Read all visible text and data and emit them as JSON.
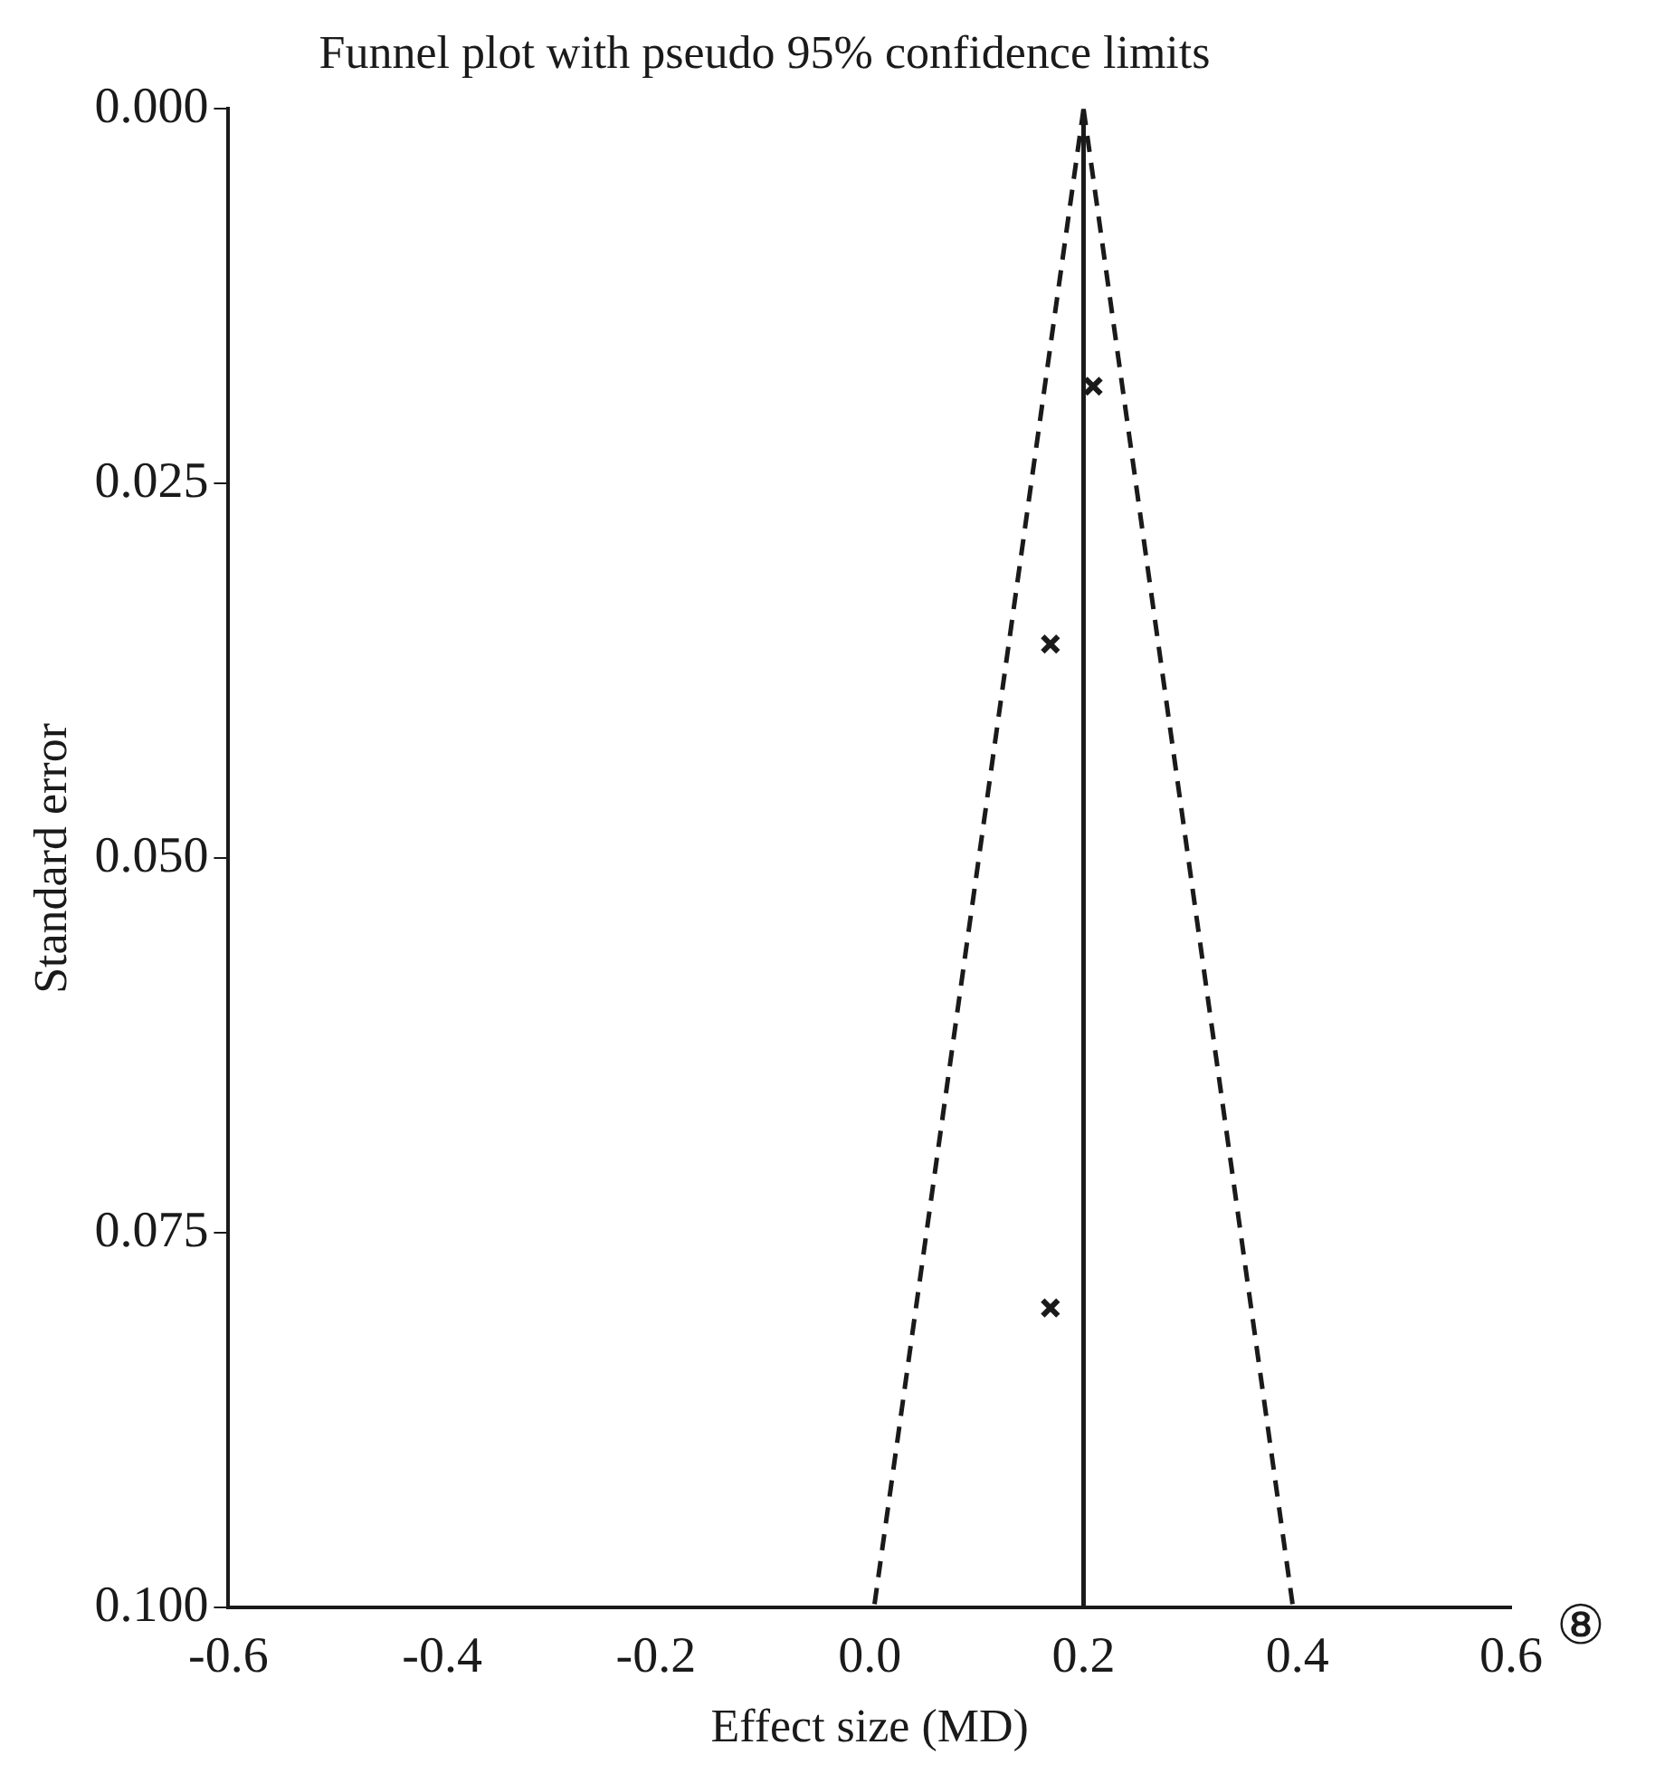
{
  "chart_data": {
    "type": "scatter",
    "title": "Funnel plot with pseudo 95% confidence limits",
    "xlabel": "Effect size (MD)",
    "ylabel": "Standard error",
    "xlim": [
      -0.6,
      0.6
    ],
    "xticks": [
      {
        "value": -0.6,
        "label": "-0.6"
      },
      {
        "value": -0.4,
        "label": "-0.4"
      },
      {
        "value": -0.2,
        "label": "-0.2"
      },
      {
        "value": 0,
        "label": "0.0"
      },
      {
        "value": 0.2,
        "label": "0.2"
      },
      {
        "value": 0.4,
        "label": "0.4"
      },
      {
        "value": 0.6,
        "label": "0.6"
      }
    ],
    "ylim": [
      0.1,
      0
    ],
    "yticks": [
      {
        "value": 0,
        "label": "0.000"
      },
      {
        "value": 0.025,
        "label": "0.025"
      },
      {
        "value": 0.05,
        "label": "0.050"
      },
      {
        "value": 0.075,
        "label": "0.075"
      },
      {
        "value": 0.1,
        "label": "0.100"
      }
    ],
    "grid": false,
    "legend": false,
    "series": [
      {
        "type": "scatter",
        "marker": "cross",
        "color": "#1a1a1a",
        "x": [
          0.209,
          0.169,
          0.169
        ],
        "values": [
          0.0185,
          0.0357,
          0.08
        ]
      },
      {
        "type": "line",
        "line_style": "dashed",
        "color": "#1a1a1a",
        "x": [
          0.2,
          0.004
        ],
        "values": [
          0,
          0.1
        ]
      },
      {
        "type": "line",
        "line_style": "dashed",
        "color": "#1a1a1a",
        "x": [
          0.2,
          0.396
        ],
        "values": [
          0,
          0.1
        ]
      }
    ],
    "ref_lines": [
      {
        "axis": "x",
        "value": 0.2,
        "color": "#1a1a1a",
        "line_style": "solid"
      }
    ],
    "annotations": [
      "⑧"
    ]
  }
}
